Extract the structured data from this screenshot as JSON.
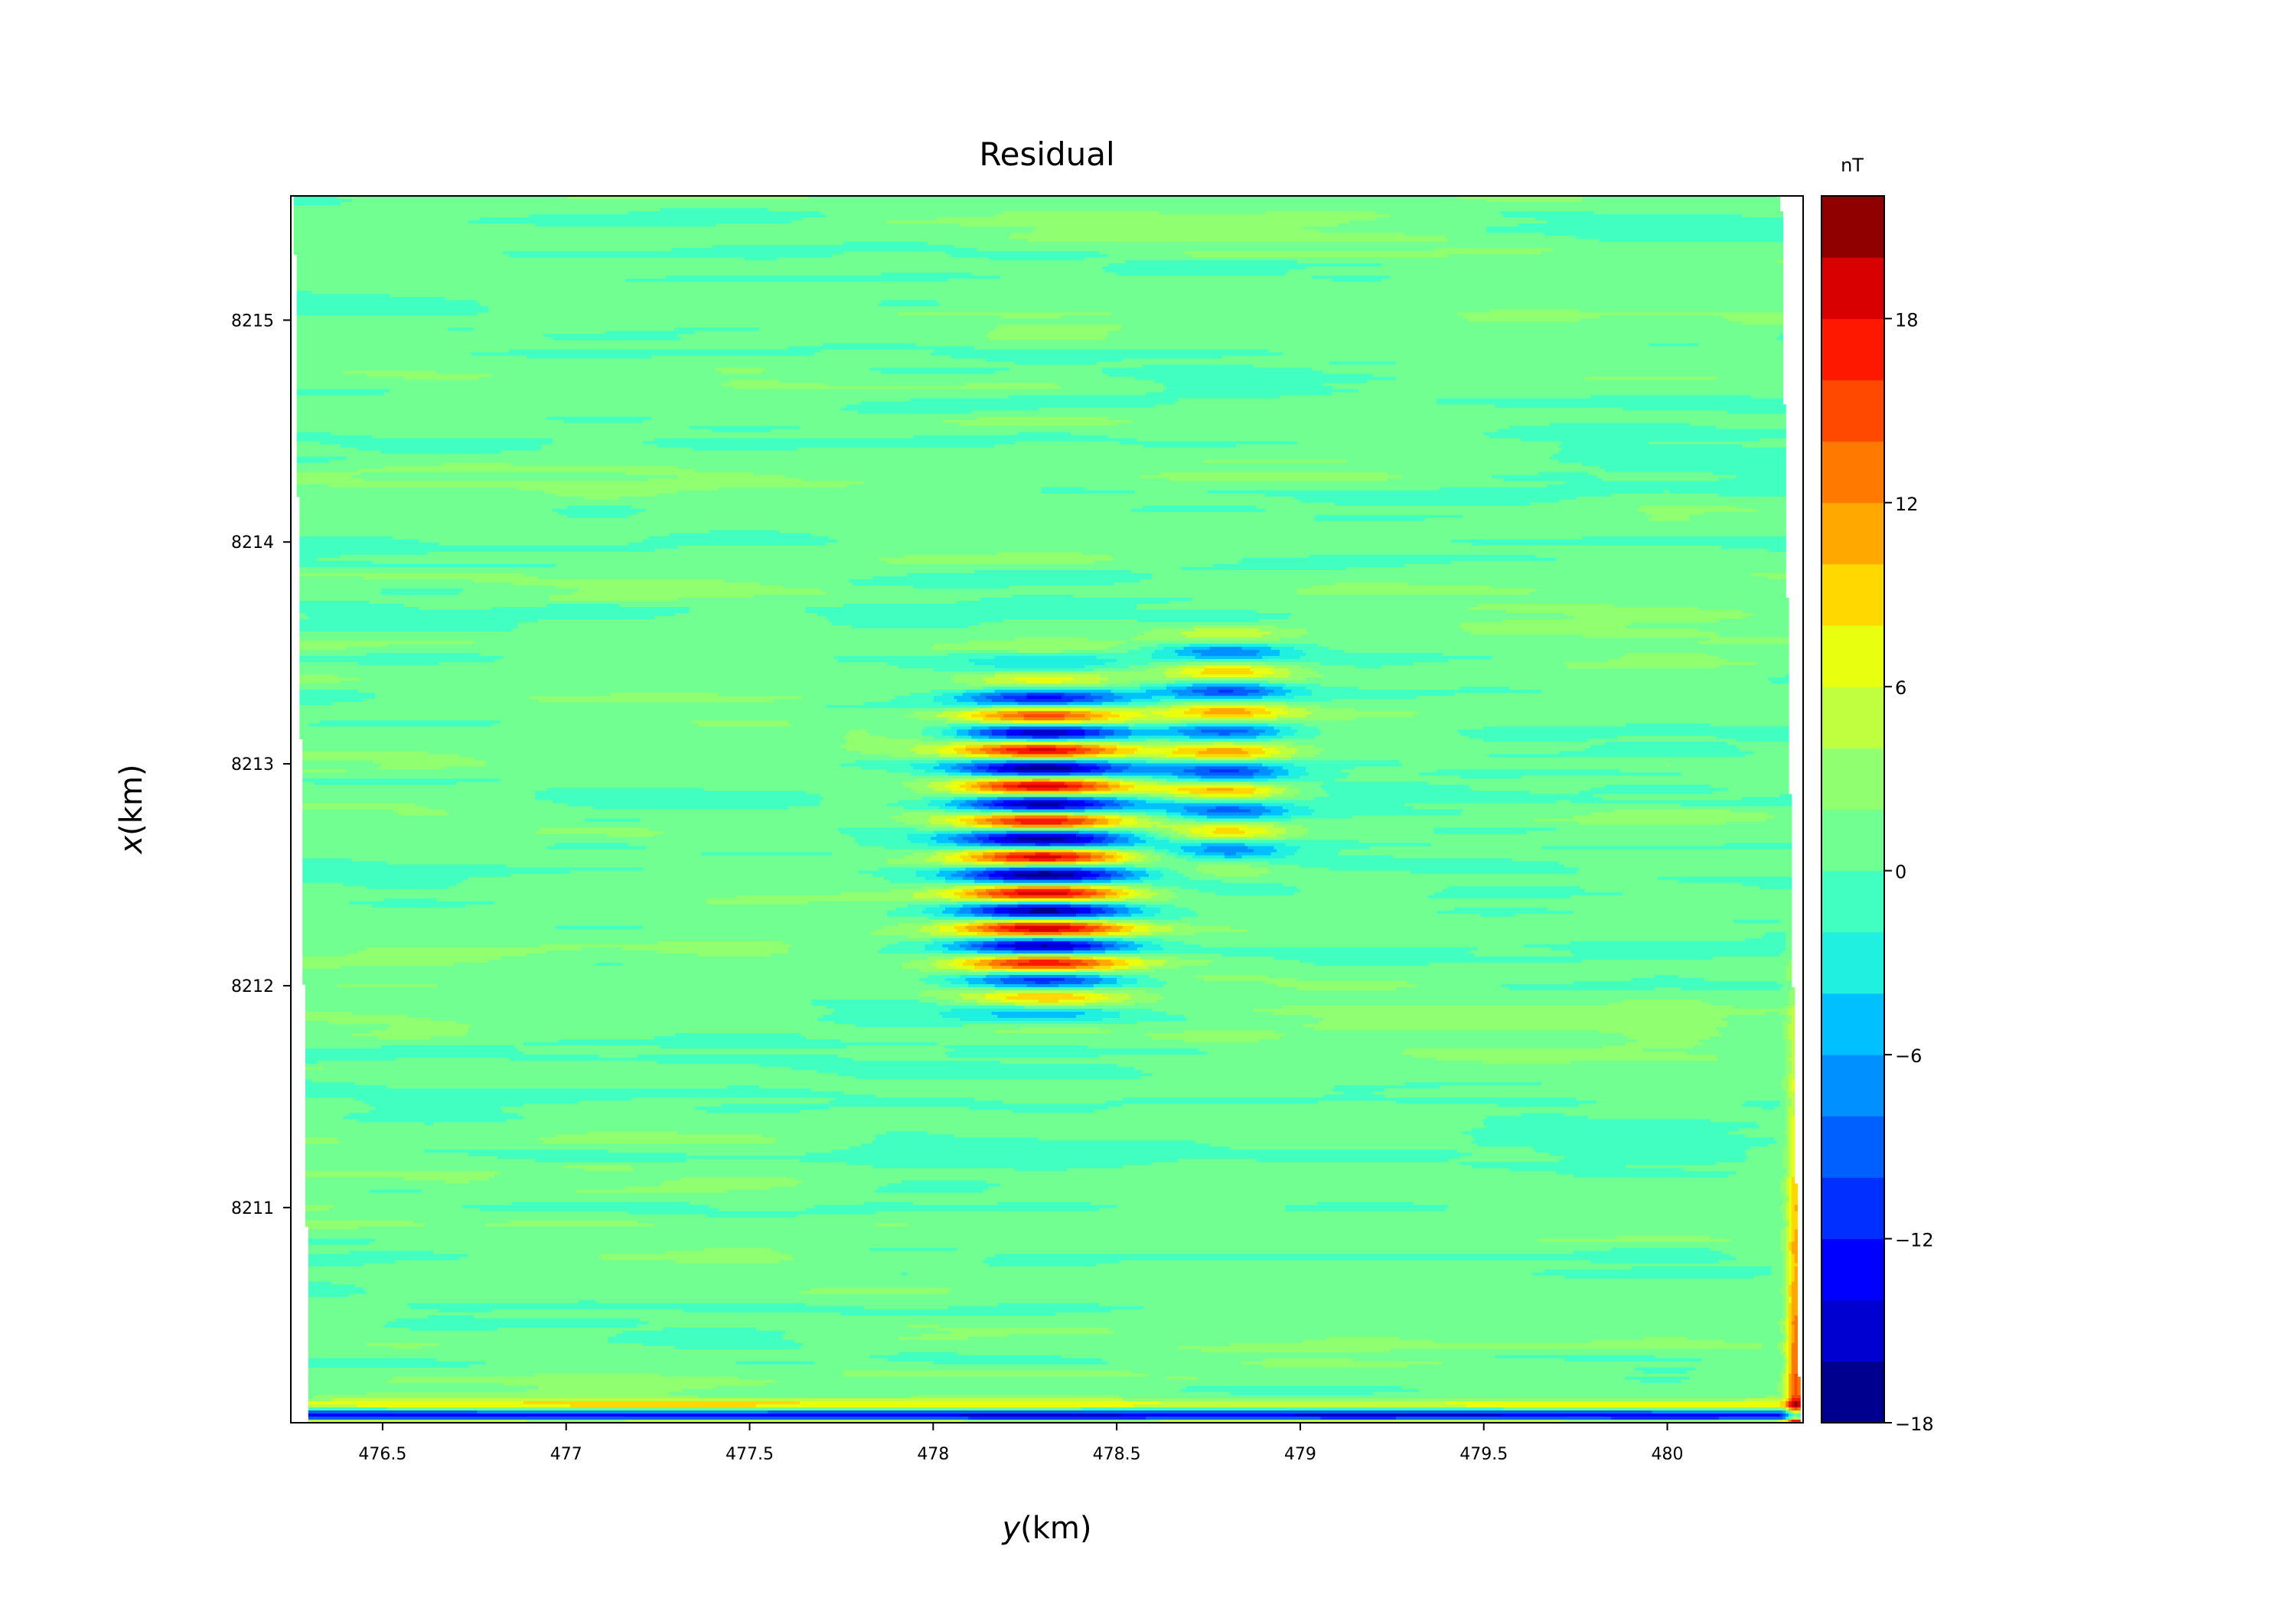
{
  "chart_data": {
    "type": "heatmap",
    "style": "filled-contour",
    "title": "Residual",
    "xlabel_var": "y",
    "xlabel_unit": "(km)",
    "ylabel_var": "x",
    "ylabel_unit": "(km)",
    "xlim": [
      476.25,
      480.37
    ],
    "ylim": [
      8210.03,
      8215.56
    ],
    "x_ticks": [
      476.5,
      477,
      477.5,
      478,
      478.5,
      479,
      479.5,
      480
    ],
    "x_tick_labels": [
      "476.5",
      "477",
      "477.5",
      "478",
      "478.5",
      "479",
      "479.5",
      "480"
    ],
    "y_ticks": [
      8211,
      8212,
      8213,
      8214,
      8215
    ],
    "y_tick_labels": [
      "8211",
      "8212",
      "8213",
      "8214",
      "8215"
    ],
    "colorbar": {
      "label": "nT",
      "colormap": "jet",
      "range": [
        -18,
        22
      ],
      "levels": [
        -18,
        -16,
        -14,
        -12,
        -10,
        -8,
        -6,
        -4,
        -2,
        0,
        2,
        4,
        6,
        8,
        10,
        12,
        14,
        16,
        18,
        20,
        22
      ],
      "ticks": [
        -18,
        -12,
        -6,
        0,
        6,
        12,
        18
      ],
      "tick_labels": [
        "−18",
        "−12",
        "−6",
        "0",
        "6",
        "12",
        "18"
      ],
      "colors": [
        "#00008f",
        "#0000d0",
        "#0000ff",
        "#0030ff",
        "#0060ff",
        "#0090ff",
        "#00c0ff",
        "#20f0e0",
        "#40ffc0",
        "#70ff90",
        "#90ff70",
        "#c0ff40",
        "#e8ff10",
        "#ffd800",
        "#ffa800",
        "#ff7800",
        "#ff4800",
        "#ff1800",
        "#d80000",
        "#900000"
      ]
    },
    "background_level": 0.8,
    "features": [
      {
        "name": "central anomaly",
        "y_center": 478.3,
        "x_range": [
          8211.9,
          8213.4
        ],
        "min": -18,
        "max": 22
      },
      {
        "name": "eastern anomaly",
        "y_center": 478.8,
        "x_range": [
          8212.5,
          8213.6
        ],
        "min": -12,
        "max": 8
      },
      {
        "name": "southern edge band",
        "y_range": [
          476.25,
          480.3
        ],
        "x": 8210.06,
        "min": -18,
        "max": 22
      },
      {
        "name": "eastern edge",
        "y": 480.35,
        "x_range": [
          8210.03,
          8212.5
        ],
        "min": 0,
        "max": 22
      }
    ]
  }
}
